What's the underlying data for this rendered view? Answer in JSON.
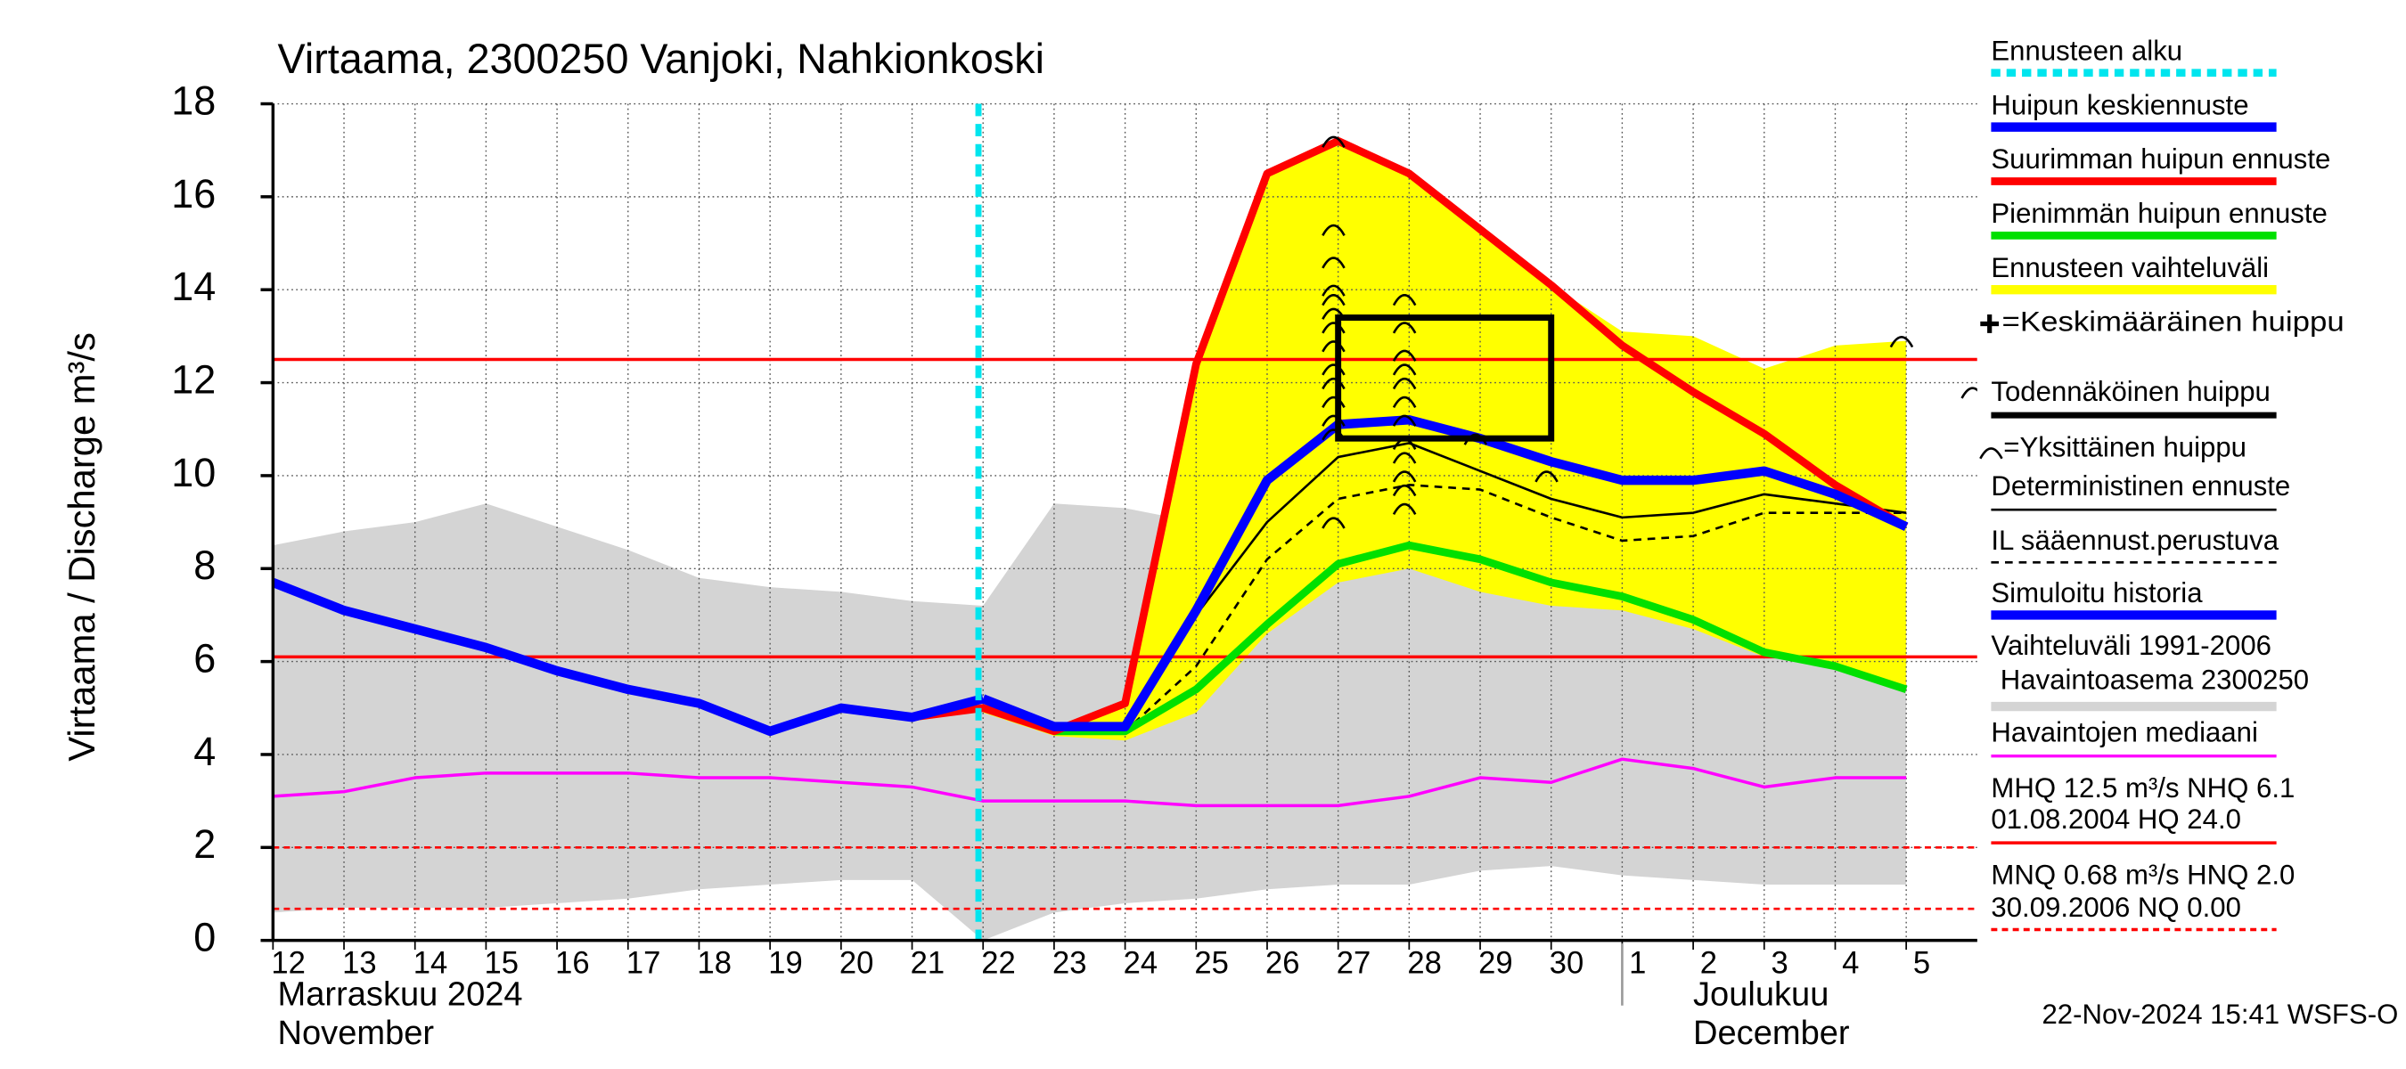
{
  "chart_data": {
    "type": "line",
    "title": "Virtaama, 2300250 Vanjoki, Nahkionkoski",
    "y_label": "Virtaama / Discharge   m³/s",
    "timestamp": "22-Nov-2024 15:41 WSFS-O",
    "months": [
      {
        "label": "Marraskuu 2024",
        "label2": "November",
        "at": 0
      },
      {
        "label": "Joulukuu",
        "label2": "December",
        "at": 19
      }
    ],
    "categories": [
      "12",
      "13",
      "14",
      "15",
      "16",
      "17",
      "18",
      "19",
      "20",
      "21",
      "22",
      "23",
      "24",
      "25",
      "26",
      "27",
      "28",
      "29",
      "30",
      "1",
      "2",
      "3",
      "4",
      "5"
    ],
    "xlim": [
      0,
      24
    ],
    "ylim": [
      0,
      18
    ],
    "yticks": [
      0,
      2,
      4,
      6,
      8,
      10,
      12,
      14,
      16,
      18
    ],
    "grid": true,
    "history_band": {
      "name": "Vaihteluväli 1991-2006",
      "station": "Havaintoasema 2300250",
      "color": "#d4d4d4",
      "upper": [
        8.5,
        8.8,
        9.0,
        9.4,
        8.9,
        8.4,
        7.8,
        7.6,
        7.5,
        7.3,
        7.2,
        9.4,
        9.3,
        9.0,
        8.8,
        9.0,
        9.2,
        8.5,
        8.3,
        8.0,
        8.0,
        8.3,
        8.5,
        8.6
      ],
      "lower": [
        0.6,
        0.7,
        0.7,
        0.7,
        0.8,
        0.9,
        1.1,
        1.2,
        1.3,
        1.3,
        0.0,
        0.6,
        0.8,
        0.9,
        1.1,
        1.2,
        1.2,
        1.5,
        1.6,
        1.4,
        1.3,
        1.2,
        1.2,
        1.2
      ]
    },
    "forecast_band": {
      "name": "Ennusteen vaihteluväli",
      "color": "#ffff00",
      "upper": [
        null,
        null,
        null,
        null,
        null,
        null,
        null,
        null,
        null,
        null,
        5.0,
        4.6,
        5.1,
        12.4,
        16.5,
        17.2,
        16.5,
        15.3,
        14.1,
        13.1,
        13.0,
        12.3,
        12.8,
        12.9
      ],
      "lower": [
        null,
        null,
        null,
        null,
        null,
        null,
        null,
        null,
        null,
        null,
        4.9,
        4.4,
        4.3,
        4.9,
        6.6,
        7.7,
        8.0,
        7.5,
        7.2,
        7.1,
        6.7,
        6.1,
        5.9,
        5.4
      ]
    },
    "ref_lines": [
      {
        "value": 12.5,
        "style": "solid"
      },
      {
        "value": 6.1,
        "style": "solid"
      },
      {
        "value": 2.0,
        "style": "dashed"
      },
      {
        "value": 0.68,
        "style": "dashed"
      }
    ],
    "ref_color": "#ff0000",
    "stats_text": [
      "MHQ 12.5 m³/s NHQ  6.1",
      "01.08.2004 HQ 24.0",
      "MNQ 0.68 m³/s HNQ  2.0",
      "30.09.2006 NQ 0.00"
    ],
    "series": [
      {
        "name": "Havaintojen mediaani",
        "color": "#ff00ff",
        "width": 2,
        "dash": "",
        "values": [
          3.1,
          3.2,
          3.5,
          3.6,
          3.6,
          3.6,
          3.5,
          3.5,
          3.4,
          3.3,
          3.0,
          3.0,
          3.0,
          2.9,
          2.9,
          2.9,
          3.1,
          3.5,
          3.4,
          3.9,
          3.7,
          3.3,
          3.5,
          3.5
        ]
      },
      {
        "name": "IL sääennust.perustuva",
        "color": "#000000",
        "width": 1.5,
        "dash": "5,4",
        "values": [
          null,
          null,
          null,
          null,
          null,
          null,
          null,
          null,
          null,
          null,
          null,
          4.5,
          4.5,
          5.9,
          8.2,
          9.5,
          9.8,
          9.7,
          9.1,
          8.6,
          8.7,
          9.2,
          9.2,
          9.2
        ]
      },
      {
        "name": "Deterministinen ennuste",
        "color": "#000000",
        "width": 1.5,
        "dash": "",
        "values": [
          null,
          null,
          null,
          null,
          null,
          null,
          null,
          null,
          null,
          null,
          5.0,
          4.5,
          4.5,
          7.0,
          9.0,
          10.4,
          10.7,
          10.1,
          9.5,
          9.1,
          9.2,
          9.6,
          9.4,
          9.2
        ]
      },
      {
        "name": "Pienimmän huipun ennuste",
        "color": "#00e000",
        "width": 5,
        "dash": "",
        "values": [
          null,
          null,
          null,
          null,
          null,
          null,
          null,
          null,
          null,
          null,
          null,
          4.5,
          4.5,
          5.4,
          6.8,
          8.1,
          8.5,
          8.2,
          7.7,
          7.4,
          6.9,
          6.2,
          5.9,
          5.4
        ]
      },
      {
        "name": "Suurimman huipun ennuste",
        "color": "#ff0000",
        "width": 5,
        "dash": "",
        "values": [
          null,
          null,
          null,
          null,
          null,
          null,
          null,
          null,
          null,
          4.8,
          5.0,
          4.5,
          5.1,
          12.4,
          16.5,
          17.2,
          16.5,
          15.3,
          14.1,
          12.8,
          11.8,
          10.9,
          9.8,
          8.9
        ]
      },
      {
        "name": "Simuloitu historia",
        "color": "#0000ff",
        "width": 6,
        "dash": "",
        "values": [
          7.7,
          7.1,
          6.7,
          6.3,
          5.8,
          5.4,
          5.1,
          4.5,
          5.0,
          4.8,
          5.2,
          null,
          null,
          null,
          null,
          null,
          null,
          null,
          null,
          null,
          null,
          null,
          null,
          null
        ]
      },
      {
        "name": "Huipun keskiennuste",
        "color": "#0000ff",
        "width": 6,
        "dash": "",
        "values": [
          null,
          null,
          null,
          null,
          null,
          null,
          null,
          null,
          null,
          null,
          5.2,
          4.6,
          4.6,
          7.1,
          9.9,
          11.1,
          11.2,
          10.8,
          10.3,
          9.9,
          9.9,
          10.1,
          9.6,
          8.9
        ]
      }
    ],
    "forecast_start": {
      "name": "Ennusteen alku",
      "x": 10,
      "color": "#00e5ee"
    },
    "mean_peak": {
      "name": "=Keskimääräinen huippu"
    },
    "peak_box": {
      "name": "Todennäköinen huippu",
      "x": [
        15,
        18
      ],
      "y": [
        10.8,
        13.4
      ]
    },
    "peaks": {
      "name": "=Yksittäinen huippu",
      "x": [
        15,
        15,
        15,
        15,
        15,
        15,
        15,
        15,
        15,
        15,
        15,
        15,
        15,
        15,
        16,
        16,
        16,
        16,
        16,
        16,
        16,
        16,
        16,
        16,
        16,
        16,
        17,
        18,
        23,
        24
      ],
      "y": [
        17.2,
        15.3,
        14.6,
        14.0,
        13.8,
        13.5,
        13.2,
        12.8,
        12.3,
        12.0,
        11.6,
        11.2,
        10.9,
        9.0,
        13.8,
        13.2,
        12.6,
        12.3,
        12.0,
        11.6,
        11.2,
        10.7,
        10.4,
        10.0,
        9.7,
        9.3,
        10.8,
        10.0,
        12.9,
        11.8
      ]
    }
  }
}
